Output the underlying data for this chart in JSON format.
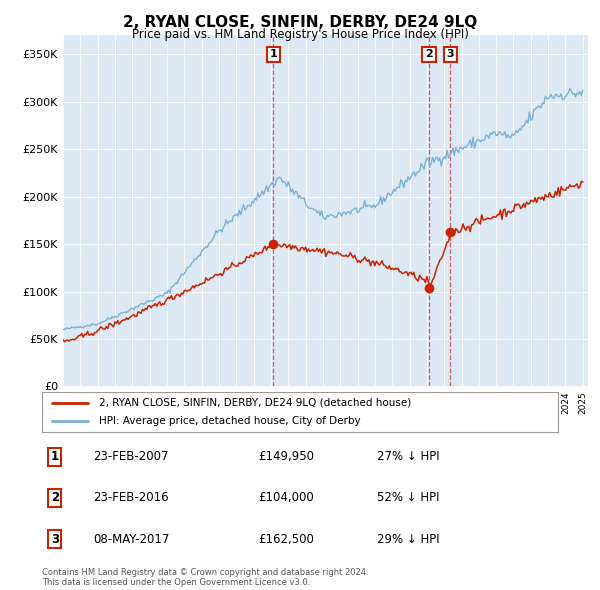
{
  "title": "2, RYAN CLOSE, SINFIN, DERBY, DE24 9LQ",
  "subtitle": "Price paid vs. HM Land Registry's House Price Index (HPI)",
  "plot_bg_color": "#dce9f5",
  "ylim": [
    0,
    370000
  ],
  "yticks": [
    0,
    50000,
    100000,
    150000,
    200000,
    250000,
    300000,
    350000
  ],
  "ytick_labels": [
    "£0",
    "£50K",
    "£100K",
    "£150K",
    "£200K",
    "£250K",
    "£300K",
    "£350K"
  ],
  "year_start": 1995,
  "year_end": 2025,
  "hpi_color": "#7ab0d4",
  "price_color": "#cc2200",
  "sale1_date": 2007.13,
  "sale1_price": 149950,
  "sale1_label": "1",
  "sale2_date": 2016.13,
  "sale2_price": 104000,
  "sale2_label": "2",
  "sale3_date": 2017.35,
  "sale3_price": 162500,
  "sale3_label": "3",
  "legend_property": "2, RYAN CLOSE, SINFIN, DERBY, DE24 9LQ (detached house)",
  "legend_hpi": "HPI: Average price, detached house, City of Derby",
  "table_rows": [
    {
      "num": "1",
      "date": "23-FEB-2007",
      "price": "£149,950",
      "pct": "27% ↓ HPI"
    },
    {
      "num": "2",
      "date": "23-FEB-2016",
      "price": "£104,000",
      "pct": "52% ↓ HPI"
    },
    {
      "num": "3",
      "date": "08-MAY-2017",
      "price": "£162,500",
      "pct": "29% ↓ HPI"
    }
  ],
  "footer": "Contains HM Land Registry data © Crown copyright and database right 2024.\nThis data is licensed under the Open Government Licence v3.0."
}
